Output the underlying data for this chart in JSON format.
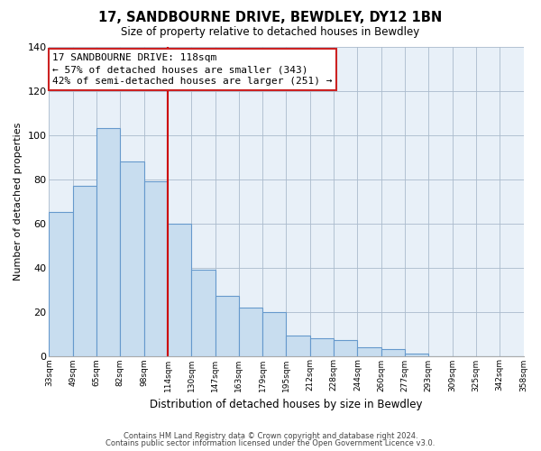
{
  "title": "17, SANDBOURNE DRIVE, BEWDLEY, DY12 1BN",
  "subtitle": "Size of property relative to detached houses in Bewdley",
  "xlabel": "Distribution of detached houses by size in Bewdley",
  "ylabel": "Number of detached properties",
  "bin_labels": [
    "33sqm",
    "49sqm",
    "65sqm",
    "82sqm",
    "98sqm",
    "114sqm",
    "130sqm",
    "147sqm",
    "163sqm",
    "179sqm",
    "195sqm",
    "212sqm",
    "228sqm",
    "244sqm",
    "260sqm",
    "277sqm",
    "293sqm",
    "309sqm",
    "325sqm",
    "342sqm",
    "358sqm"
  ],
  "bar_heights": [
    65,
    77,
    103,
    88,
    79,
    60,
    39,
    27,
    22,
    20,
    9,
    8,
    7,
    4,
    3,
    1,
    0,
    0,
    0,
    0
  ],
  "bar_color": "#c8ddef",
  "bar_edge_color": "#6699cc",
  "vline_color": "#cc0000",
  "vline_bin_index": 5,
  "ylim": [
    0,
    140
  ],
  "yticks": [
    0,
    20,
    40,
    60,
    80,
    100,
    120,
    140
  ],
  "annotation_title": "17 SANDBOURNE DRIVE: 118sqm",
  "annotation_line1": "← 57% of detached houses are smaller (343)",
  "annotation_line2": "42% of semi-detached houses are larger (251) →",
  "footnote1": "Contains HM Land Registry data © Crown copyright and database right 2024.",
  "footnote2": "Contains public sector information licensed under the Open Government Licence v3.0.",
  "bg_color": "#e8f0f8"
}
